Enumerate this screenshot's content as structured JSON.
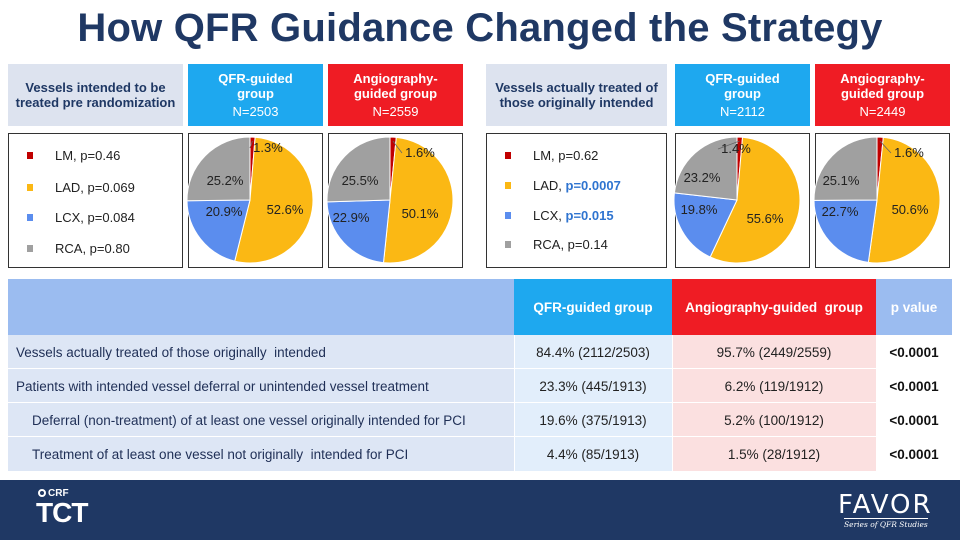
{
  "title": "How QFR Guidance Changed the Strategy",
  "colors": {
    "LM": "#c00000",
    "LAD": "#fbb814",
    "LCX": "#5b8dee",
    "RCA": "#a0a0a0"
  },
  "left_section": {
    "header": "Vessels intended to be treated pre randomization",
    "qfr_header": "QFR-guided group",
    "qfr_n": "N=2503",
    "angio_header": "Angiography-guided group",
    "angio_n": "N=2559",
    "legend": [
      {
        "label": "LM, p=0.46",
        "p_prefix": "",
        "p_value": ""
      },
      {
        "label": "LAD, p=0.069",
        "p_prefix": "",
        "p_value": ""
      },
      {
        "label": "LCX, p=0.084",
        "p_prefix": "",
        "p_value": ""
      },
      {
        "label": "RCA, p=0.80",
        "p_prefix": "",
        "p_value": ""
      }
    ]
  },
  "right_section": {
    "header": "Vessels actually treated of those originally intended",
    "qfr_header": "QFR-guided group",
    "qfr_n": "N=2112",
    "angio_header": "Angiography-guided group",
    "angio_n": "N=2449",
    "legend": [
      {
        "label": "LM, p=0.62"
      },
      {
        "label": "LAD, ",
        "sig": "p=0.0007"
      },
      {
        "label": "LCX, ",
        "sig": "p=0.015"
      },
      {
        "label": "RCA, p=0.14"
      }
    ]
  },
  "chart_data": [
    {
      "type": "pie",
      "name": "intended_qfr",
      "categories": [
        "LM",
        "LAD",
        "LCX",
        "RCA"
      ],
      "values": [
        1.3,
        52.6,
        20.9,
        25.2
      ],
      "labels": [
        "1.3%",
        "52.6%",
        "20.9%",
        "25.2%"
      ]
    },
    {
      "type": "pie",
      "name": "intended_angio",
      "categories": [
        "LM",
        "LAD",
        "LCX",
        "RCA"
      ],
      "values": [
        1.6,
        50.1,
        22.9,
        25.5
      ],
      "labels": [
        "1.6%",
        "50.1%",
        "22.9%",
        "25.5%"
      ]
    },
    {
      "type": "pie",
      "name": "treated_qfr",
      "categories": [
        "LM",
        "LAD",
        "LCX",
        "RCA"
      ],
      "values": [
        1.4,
        55.6,
        19.8,
        23.2
      ],
      "labels": [
        "1.4%",
        "55.6%",
        "19.8%",
        "23.2%"
      ]
    },
    {
      "type": "pie",
      "name": "treated_angio",
      "categories": [
        "LM",
        "LAD",
        "LCX",
        "RCA"
      ],
      "values": [
        1.6,
        50.6,
        22.7,
        25.1
      ],
      "labels": [
        "1.6%",
        "50.6%",
        "22.7%",
        "25.1%"
      ]
    }
  ],
  "table": {
    "headers": [
      "",
      "QFR-guided group",
      "Angiography-guided  group",
      "p value"
    ],
    "rows": [
      [
        "Vessels actually treated of those originally  intended",
        "84.4% (2112/2503)",
        "95.7% (2449/2559)",
        "<0.0001"
      ],
      [
        "Patients with intended vessel deferral or unintended vessel treatment",
        "23.3% (445/1913)",
        "6.2% (119/1912)",
        "<0.0001"
      ],
      [
        "Deferral (non-treatment) of at least one vessel originally intended for PCI",
        "19.6% (375/1913)",
        "5.2% (100/1912)",
        "<0.0001"
      ],
      [
        "Treatment of at least one vessel not originally  intended for PCI",
        "4.4% (85/1913)",
        "1.5% (28/1912)",
        "<0.0001"
      ]
    ]
  },
  "footer": {
    "crf": "CRF",
    "tct": "TCT",
    "favor": "FAVOR",
    "favor_sub": "Series of QFR  Studies"
  }
}
